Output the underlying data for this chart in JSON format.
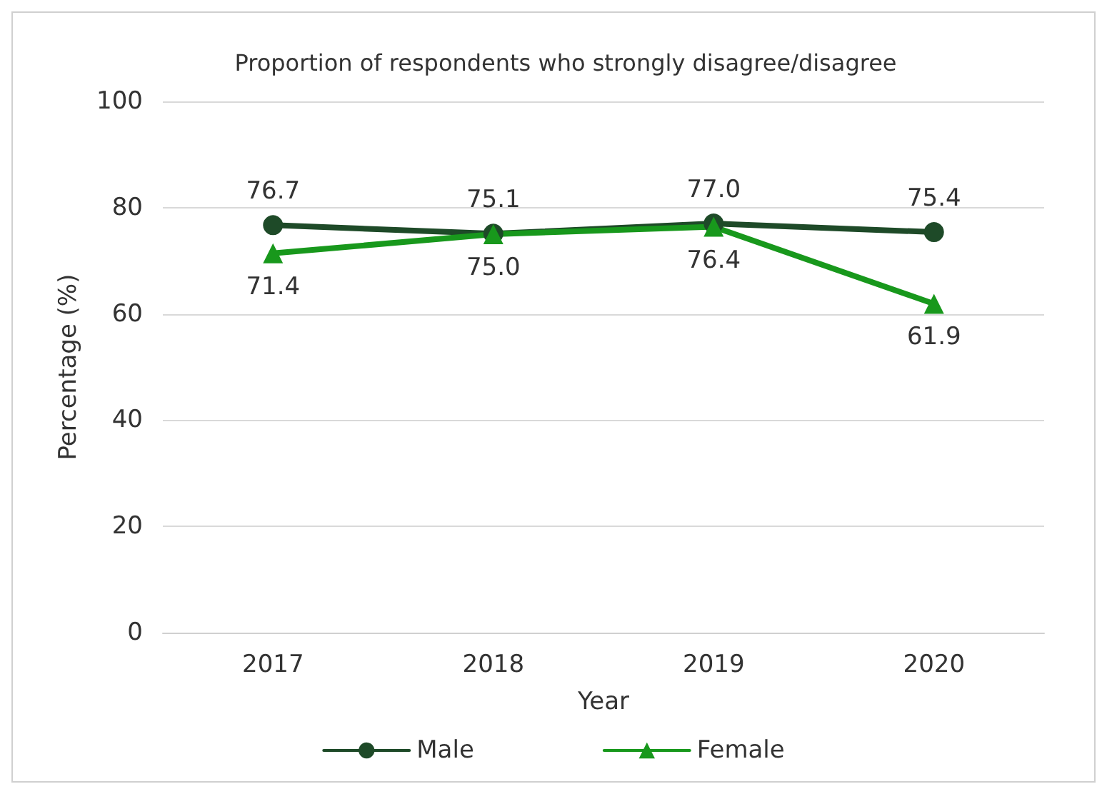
{
  "chart_data": {
    "type": "line",
    "title": "Proportion of respondents who strongly disagree/disagree",
    "xlabel": "Year",
    "ylabel": "Percentage (%)",
    "categories": [
      "2017",
      "2018",
      "2019",
      "2020"
    ],
    "series": [
      {
        "name": "Male",
        "color": "#1e4a28",
        "values": [
          76.7,
          75.1,
          77.0,
          75.4
        ],
        "value_labels": [
          "76.7",
          "75.1",
          "77.0",
          "75.4"
        ],
        "marker": "circle"
      },
      {
        "name": "Female",
        "color": "#18981c",
        "values": [
          71.4,
          75.0,
          76.4,
          61.9
        ],
        "value_labels": [
          "71.4",
          "75.0",
          "76.4",
          "61.9"
        ],
        "marker": "triangle"
      }
    ],
    "ylim": [
      0,
      100
    ],
    "yticks": [
      0,
      20,
      40,
      60,
      80,
      100
    ],
    "grid": "y",
    "legend": "bottom",
    "line_style": "solid"
  }
}
